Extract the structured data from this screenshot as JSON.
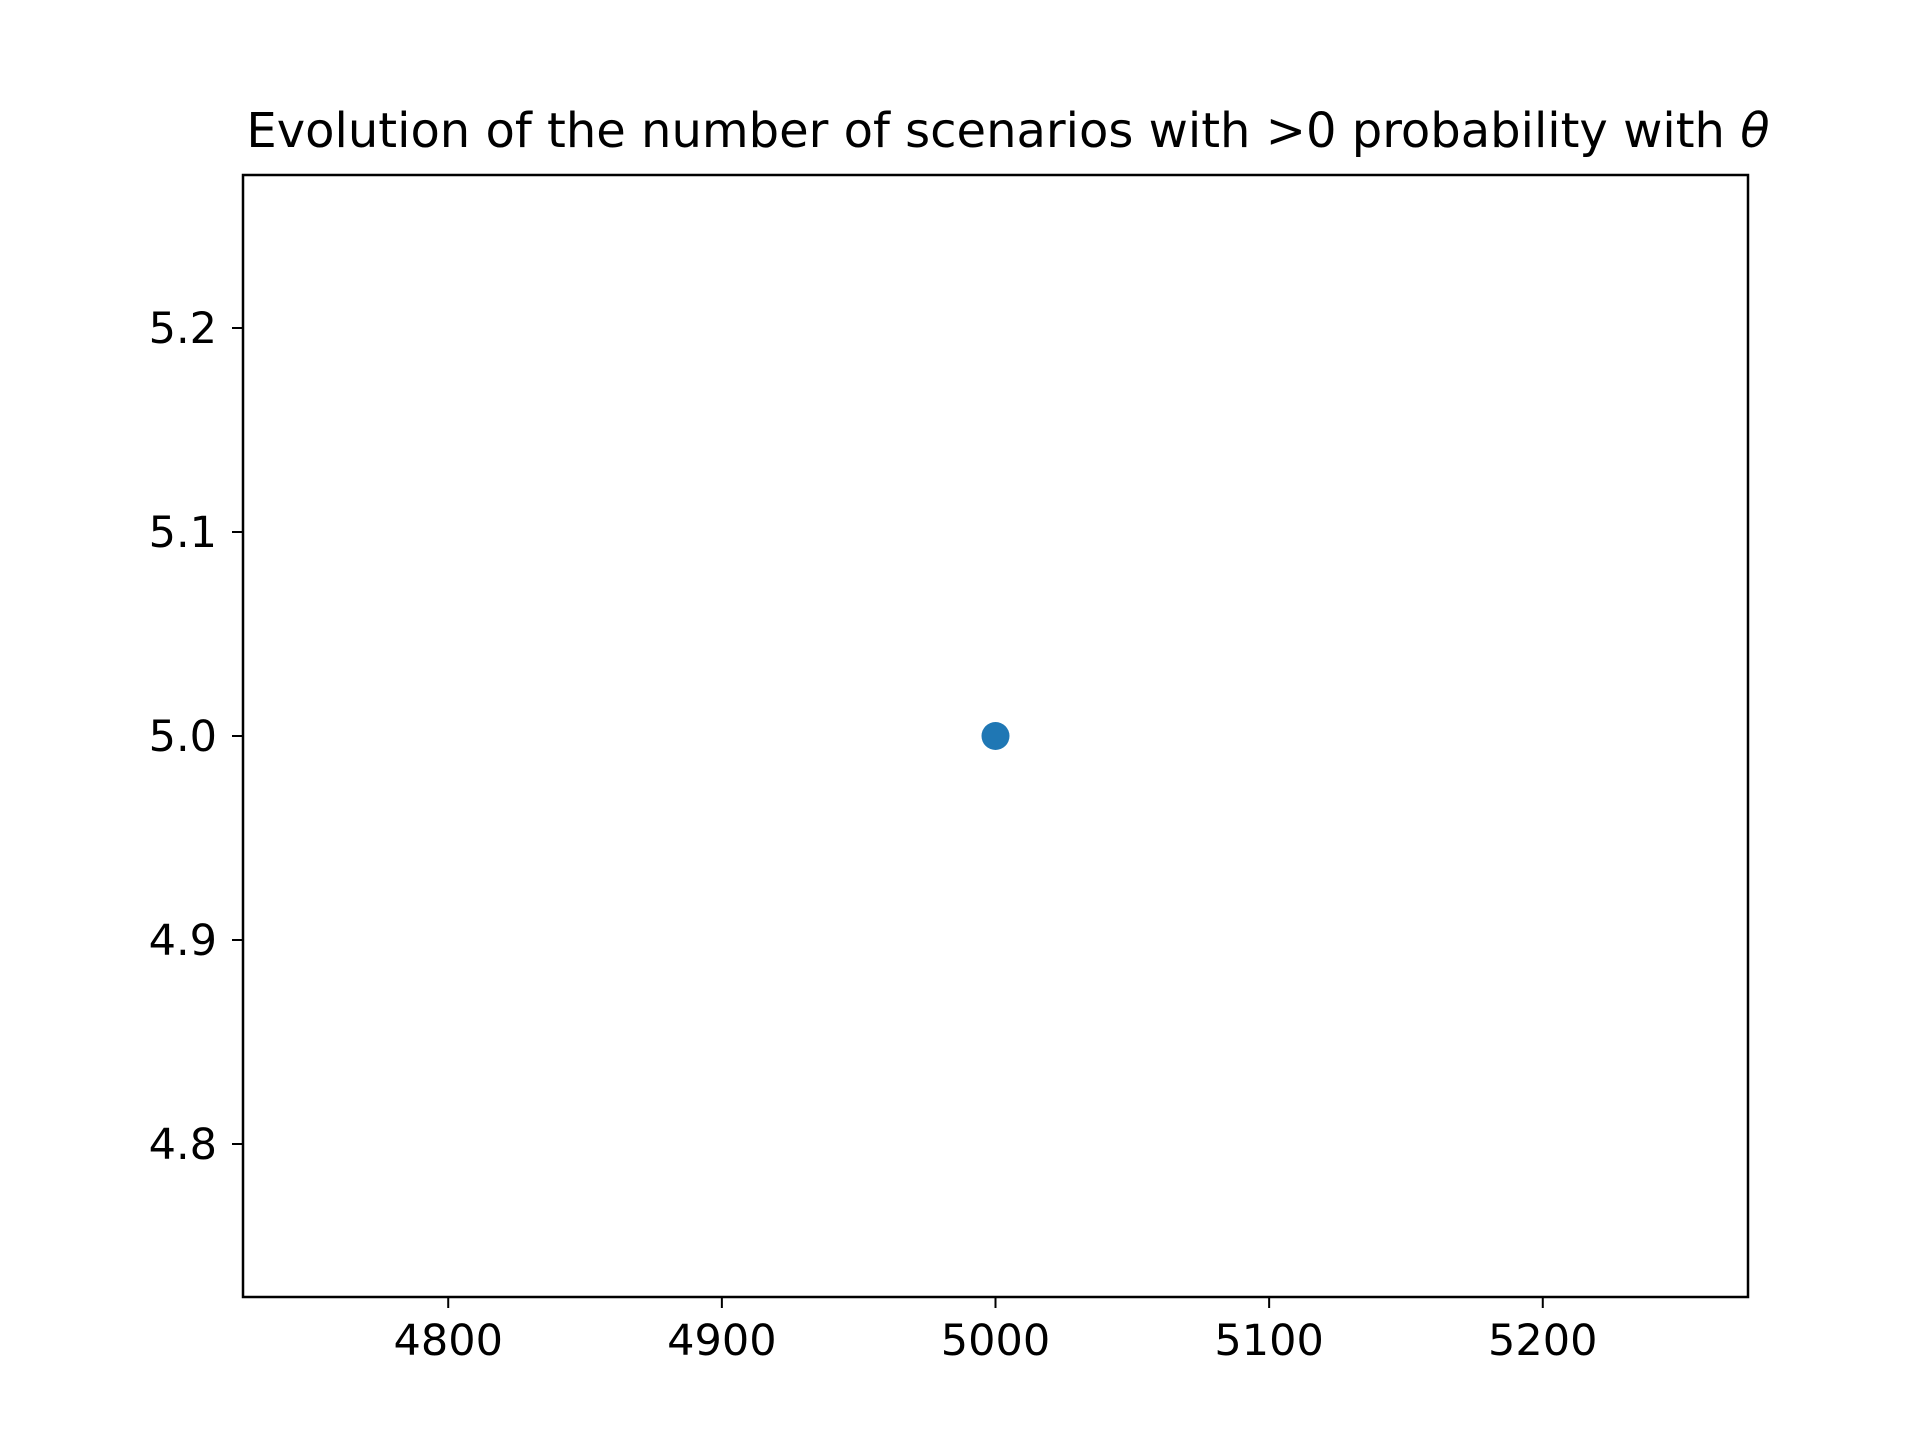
{
  "chart_data": {
    "type": "scatter",
    "title": "Evolution of the number of scenarios with >0 probability with ",
    "title_symbol": "θ",
    "xlabel": "",
    "ylabel": "",
    "xlim": [
      4725,
      5275
    ],
    "ylim": [
      4.725,
      5.275
    ],
    "x_ticks": [
      4800,
      4900,
      5000,
      5100,
      5200
    ],
    "x_tick_labels": [
      "4800",
      "4900",
      "5000",
      "5100",
      "5200"
    ],
    "y_ticks": [
      4.8,
      4.9,
      5.0,
      5.1,
      5.2
    ],
    "y_tick_labels": [
      "4.8",
      "4.9",
      "5.0",
      "5.1",
      "5.2"
    ],
    "grid": false,
    "series": [
      {
        "color": "#1f77b4",
        "x": [
          5000
        ],
        "y": [
          5.0
        ]
      }
    ]
  }
}
